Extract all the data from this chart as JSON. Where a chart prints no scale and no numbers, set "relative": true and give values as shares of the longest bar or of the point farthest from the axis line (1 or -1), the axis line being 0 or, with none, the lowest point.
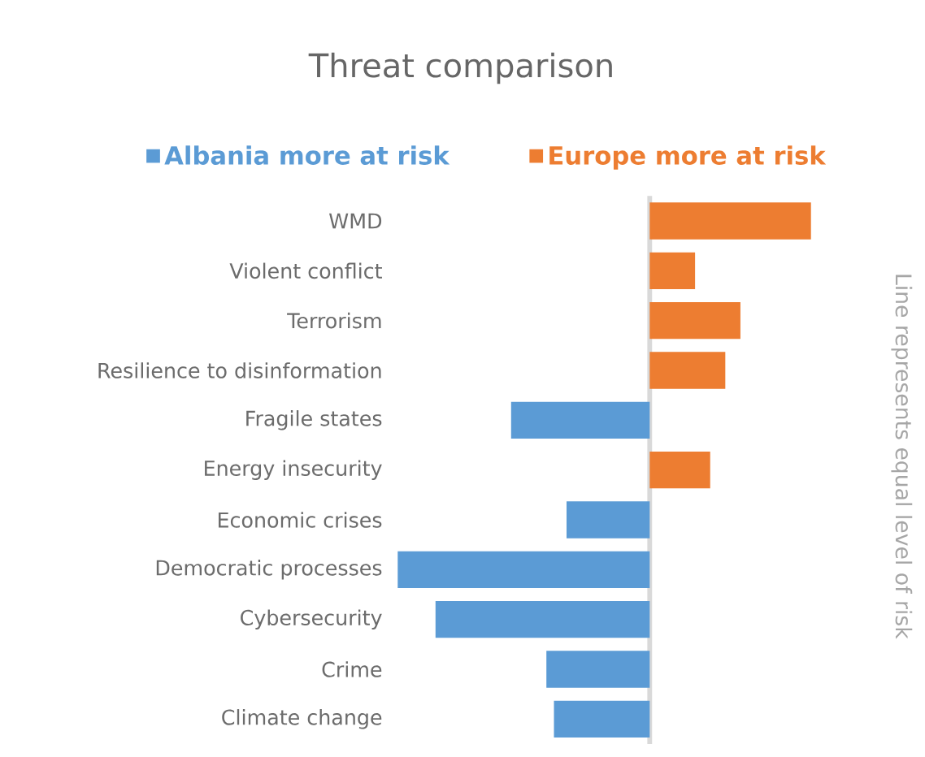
{
  "chart_data": {
    "type": "bar",
    "orientation": "horizontal",
    "relative": true,
    "title": "Threat comparison",
    "categories": [
      "WMD",
      "Violent conflict",
      "Terrorism",
      "Resilience to disinformation",
      "Fragile states",
      "Energy insecurity",
      "Economic crises",
      "Democratic processes",
      "Cybersecurity",
      "Crime",
      "Climate change"
    ],
    "series": [
      {
        "name": "Albania more at risk",
        "color": "#5b9bd5",
        "values": [
          null,
          null,
          null,
          null,
          -0.55,
          null,
          -0.33,
          -1,
          -0.85,
          -0.41,
          -0.38
        ]
      },
      {
        "name": "Europe more at risk",
        "color": "#ed7d31",
        "values": [
          0.64,
          0.18,
          0.36,
          0.3,
          null,
          0.24,
          null,
          null,
          null,
          null,
          null
        ]
      }
    ],
    "ref_lines": [
      {
        "axis": "x",
        "value": 0,
        "color": "#d9d9d9"
      }
    ],
    "annotations": [
      "Line represents equal level of risk"
    ],
    "legend": "top"
  }
}
